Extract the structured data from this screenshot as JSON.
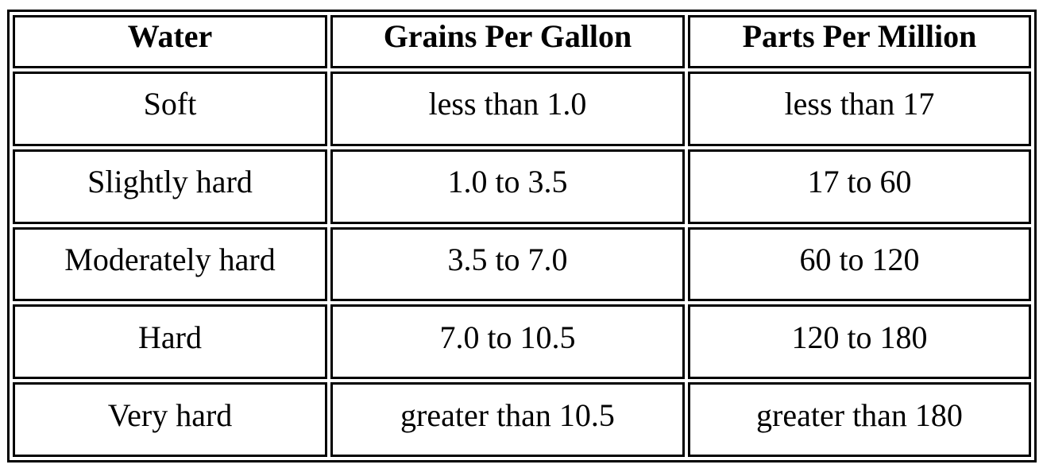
{
  "table": {
    "header": [
      "Water",
      "Grains Per Gallon",
      "Parts Per Million"
    ],
    "rows": [
      [
        "Soft",
        "less than 1.0",
        "less than 17"
      ],
      [
        "Slightly hard",
        "1.0 to 3.5",
        "17 to 60"
      ],
      [
        "Moderately hard",
        "3.5 to 7.0",
        "60 to 120"
      ],
      [
        "Hard",
        "7.0 to 10.5",
        "120 to 180"
      ],
      [
        "Very hard",
        "greater than 10.5",
        "greater than 180"
      ]
    ]
  }
}
